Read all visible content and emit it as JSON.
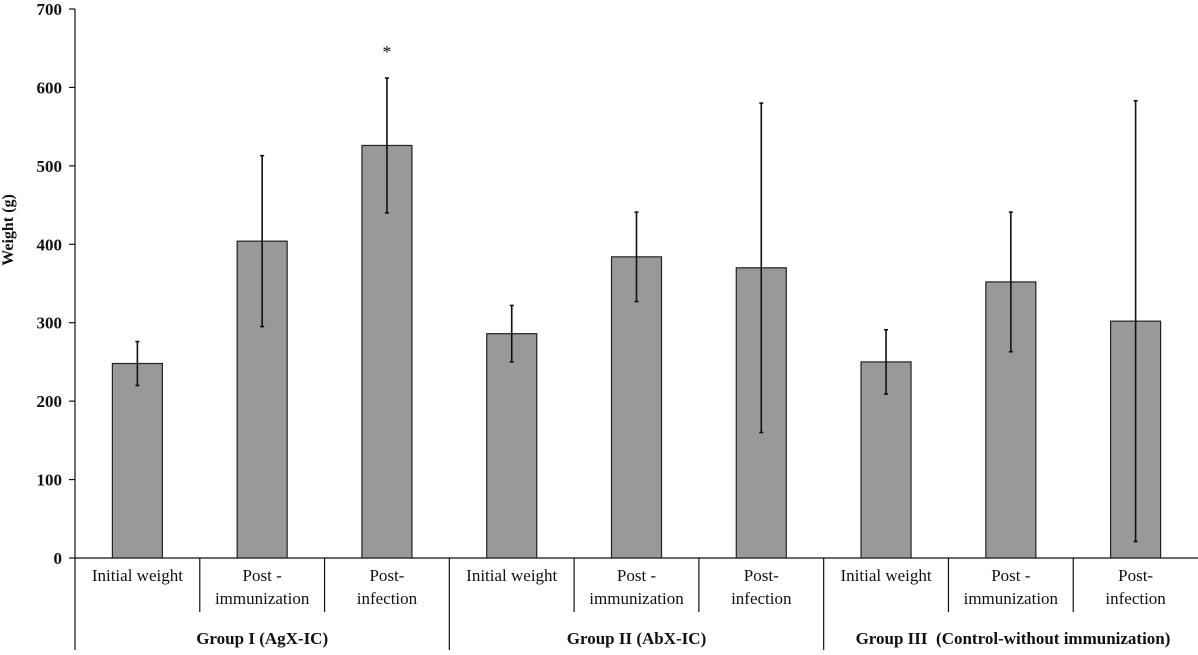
{
  "chart_data": {
    "type": "bar",
    "ylabel": "Weight (g)",
    "ylim": [
      0,
      700
    ],
    "yticks": [
      0,
      100,
      200,
      300,
      400,
      500,
      600,
      700
    ],
    "grid": false,
    "legend": "none",
    "bar_color": "#999999",
    "groups": [
      {
        "label": "Group I (AgX-IC)",
        "categories": [
          {
            "label": [
              "Initial weight"
            ],
            "value": 248,
            "error": 28,
            "annotation": ""
          },
          {
            "label": [
              "Post -",
              "immunization"
            ],
            "value": 404,
            "error": 109,
            "annotation": ""
          },
          {
            "label": [
              "Post-",
              "infection"
            ],
            "value": 526,
            "error": 86,
            "annotation": "*"
          }
        ]
      },
      {
        "label": "Group II (AbX-IC)",
        "categories": [
          {
            "label": [
              "Initial weight"
            ],
            "value": 286,
            "error": 36,
            "annotation": ""
          },
          {
            "label": [
              "Post -",
              "immunization"
            ],
            "value": 384,
            "error": 57,
            "annotation": ""
          },
          {
            "label": [
              "Post-",
              "infection"
            ],
            "value": 370,
            "error": 210,
            "annotation": ""
          }
        ]
      },
      {
        "label": "Group III  (Control-without immunization)",
        "categories": [
          {
            "label": [
              "Initial weight"
            ],
            "value": 250,
            "error": 41,
            "annotation": ""
          },
          {
            "label": [
              "Post -",
              "immunization"
            ],
            "value": 352,
            "error": 89,
            "annotation": ""
          },
          {
            "label": [
              "Post-",
              "infection"
            ],
            "value": 302,
            "error": 281,
            "annotation": ""
          }
        ]
      }
    ]
  }
}
